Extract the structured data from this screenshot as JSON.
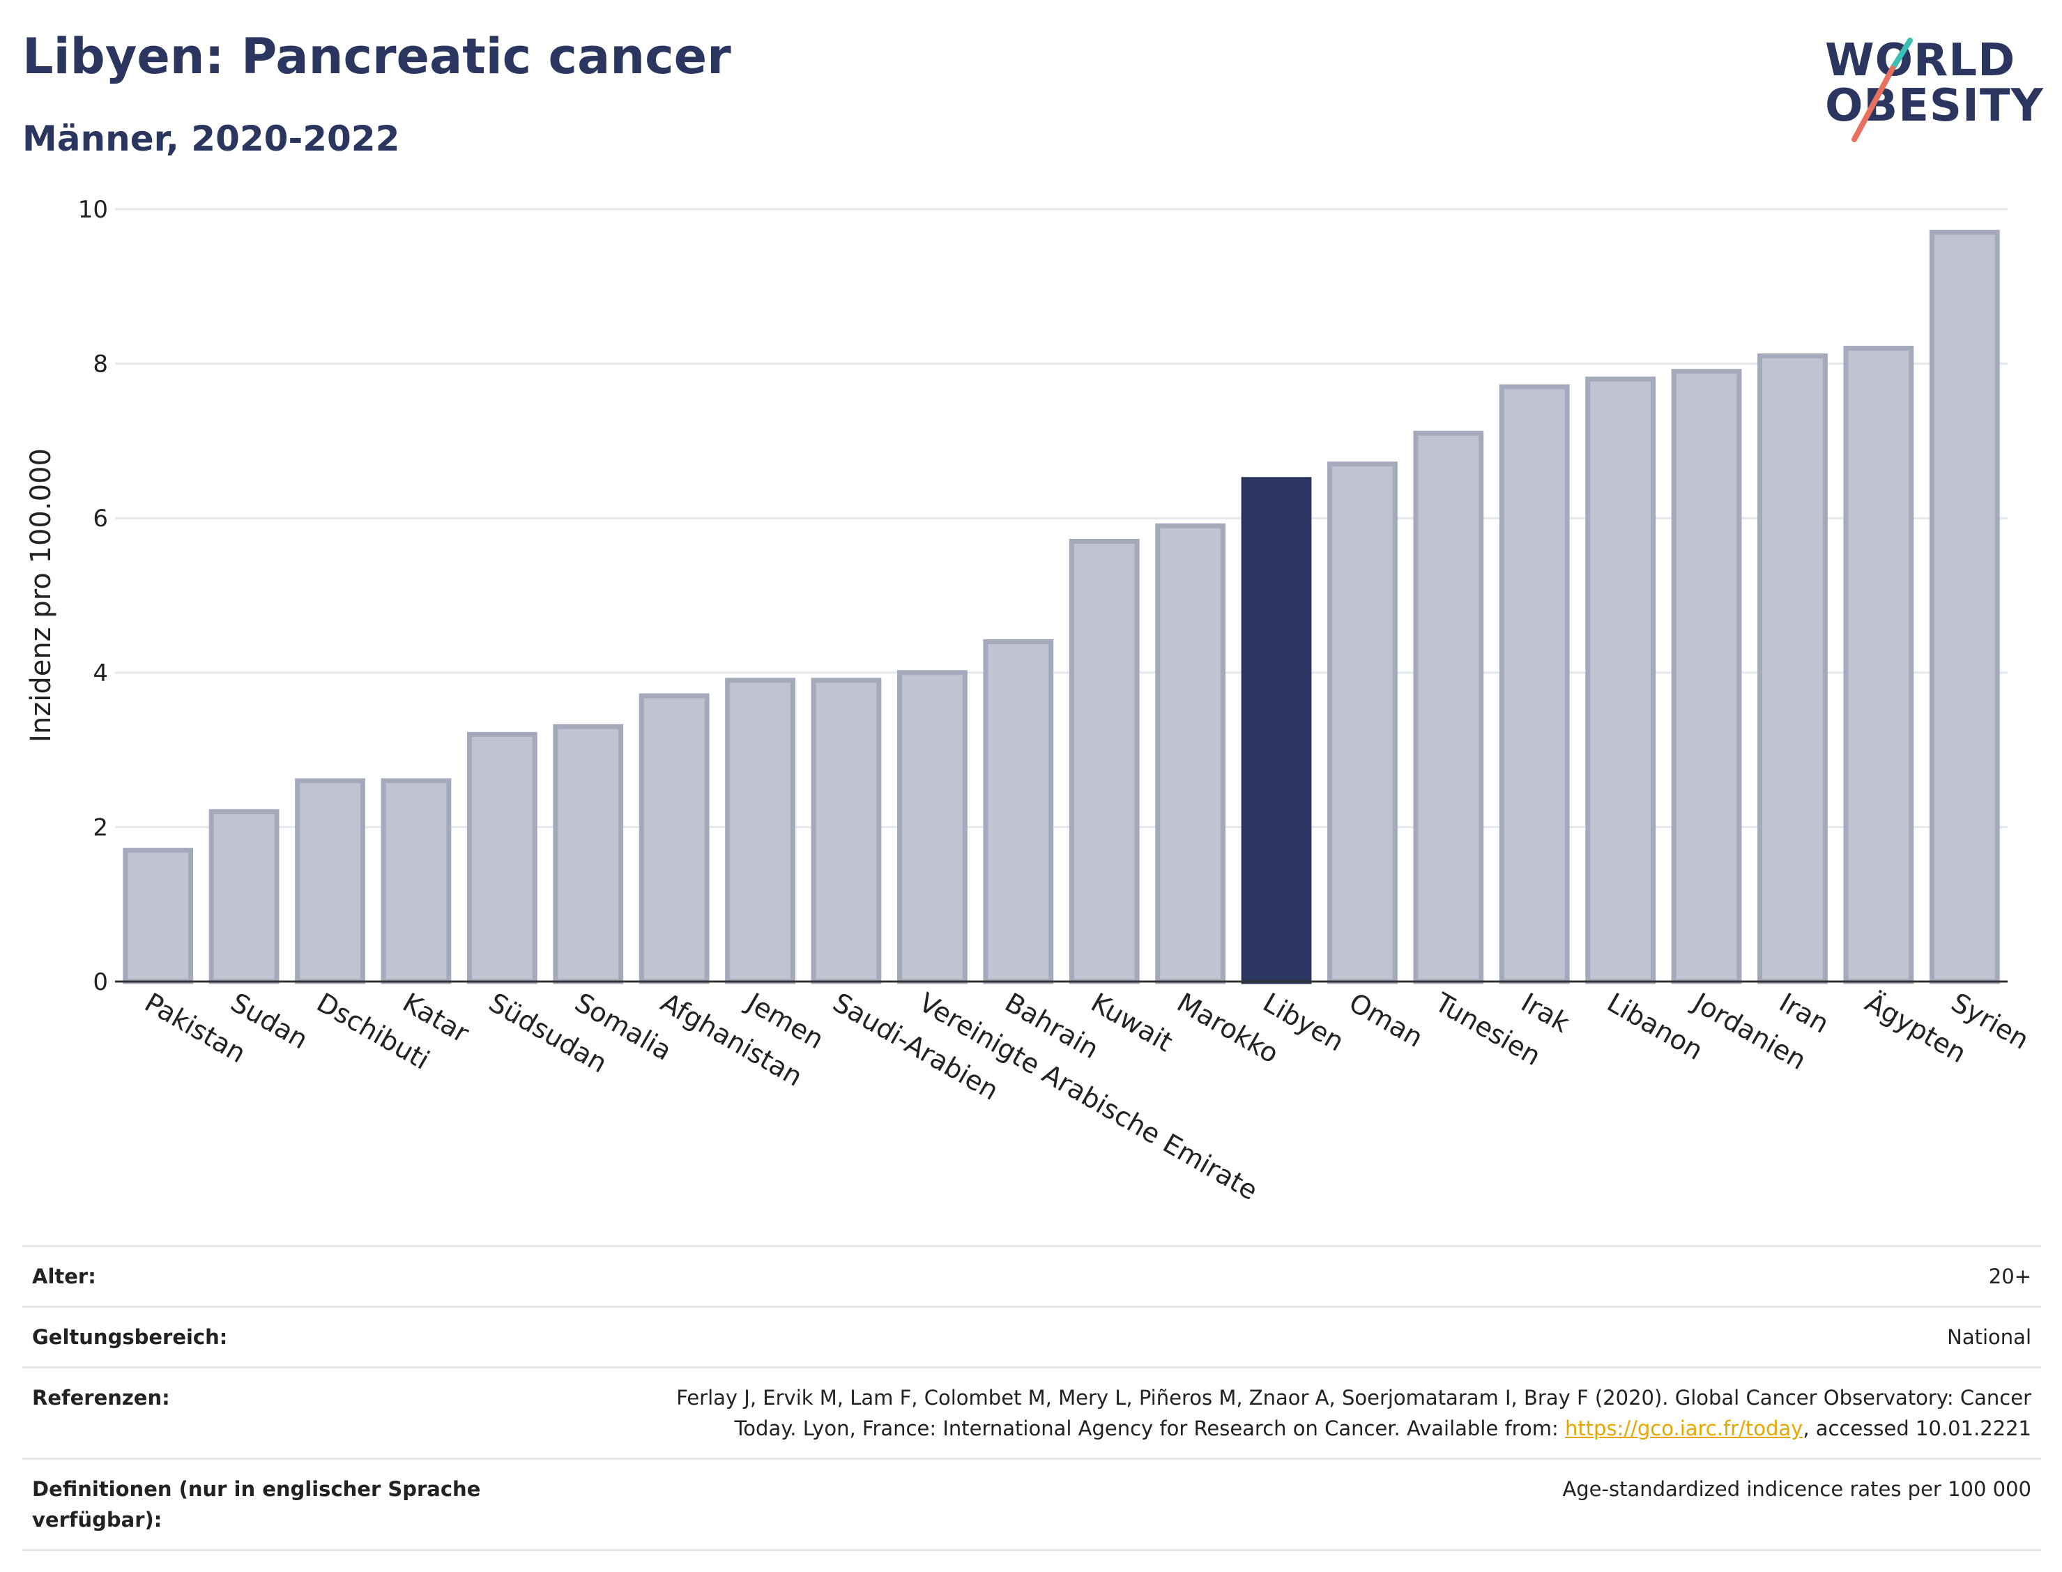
{
  "header": {
    "title": "Libyen: Pancreatic cancer",
    "subtitle": "Männer, 2020-2022"
  },
  "logo": {
    "line1": "WORLD",
    "line2": "OBESITY",
    "accent_teal": "#3bbfb5",
    "accent_coral": "#e8705e"
  },
  "colors": {
    "bar": "#c0c4d1",
    "bar_stroke": "#a4a9bc",
    "highlight": "#2a3560",
    "grid": "#e6e8ee",
    "text": "#222222"
  },
  "chart_data": {
    "type": "bar",
    "ylabel": "Inzidenz pro 100.000",
    "ylim": [
      0,
      10
    ],
    "yticks": [
      0,
      2,
      4,
      6,
      8,
      10
    ],
    "grid": true,
    "highlight": "Libyen",
    "categories": [
      "Pakistan",
      "Sudan",
      "Dschibuti",
      "Katar",
      "Südsudan",
      "Somalia",
      "Afghanistan",
      "Jemen",
      "Saudi-Arabien",
      "Vereinigte Arabische Emirate",
      "Bahrain",
      "Kuwait",
      "Marokko",
      "Libyen",
      "Oman",
      "Tunesien",
      "Irak",
      "Libanon",
      "Jordanien",
      "Iran",
      "Ägypten",
      "Syrien"
    ],
    "values": [
      1.7,
      2.2,
      2.6,
      2.6,
      3.2,
      3.3,
      3.7,
      3.9,
      3.9,
      4.0,
      4.4,
      5.7,
      5.9,
      6.5,
      6.7,
      7.1,
      7.7,
      7.8,
      7.9,
      8.1,
      8.2,
      9.7
    ]
  },
  "info": {
    "rows": [
      {
        "label": "Alter:",
        "value": "20+"
      },
      {
        "label": "Geltungsbereich:",
        "value": "National"
      },
      {
        "label": "Referenzen:",
        "value_line1": "Ferlay J, Ervik M, Lam F, Colombet M, Mery L, Piñeros M, Znaor A, Soerjomataram I, Bray F (2020). Global Cancer Observatory: Cancer",
        "value_line2_pre": "Today. Lyon, France: International Agency for Research on Cancer. Available from: ",
        "link": "https://gco.iarc.fr/today",
        "value_line2_post": ", accessed 10.01.2221"
      },
      {
        "label_line1": "Definitionen (nur in englischer Sprache",
        "label_line2": "verfügbar):",
        "value": "Age-standardized indicence rates per 100 000"
      }
    ]
  }
}
